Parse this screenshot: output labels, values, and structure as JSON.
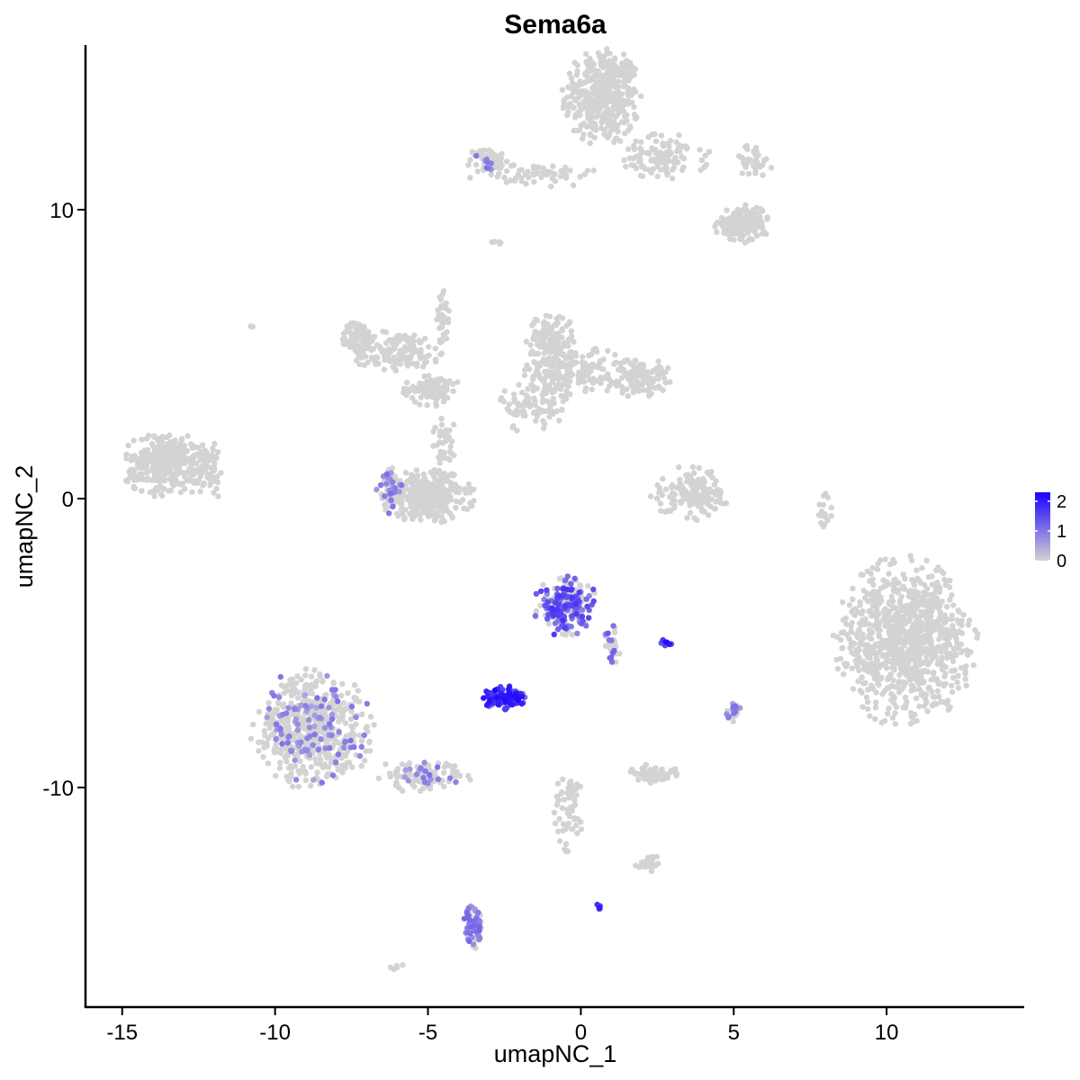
{
  "chart_data": {
    "type": "scatter",
    "title": "Sema6a",
    "xlabel": "umapNC_1",
    "ylabel": "umapNC_2",
    "xlim": [
      -16.2,
      14.5
    ],
    "ylim": [
      -17.6,
      15.7
    ],
    "x_ticks": [
      -15,
      -10,
      -5,
      0,
      5,
      10
    ],
    "x_tick_labels": [
      "-15",
      "-10",
      "-5",
      "0",
      "5",
      "10"
    ],
    "y_ticks": [
      -10,
      0,
      10
    ],
    "y_tick_labels": [
      "-10",
      "0",
      "10"
    ],
    "grid": false,
    "legend": {
      "placement": "right",
      "type": "colorbar",
      "ticks": [
        0,
        1,
        2
      ],
      "tick_labels": [
        "0",
        "1",
        "2"
      ],
      "range": [
        0,
        2.3
      ],
      "low_color": "#d3d3d3",
      "high_color": "#1a00ff"
    },
    "clusters": [
      {
        "name_hint": "top-right-head",
        "cx": 0.7,
        "cy": 13.9,
        "rx": 1.1,
        "ry": 1.5,
        "n": 420,
        "expr": 0,
        "expr_frac": 0
      },
      {
        "name_hint": "top-right-branch-a",
        "cx": 2.7,
        "cy": 11.8,
        "rx": 1.3,
        "ry": 0.7,
        "n": 110,
        "expr": 0,
        "expr_frac": 0
      },
      {
        "name_hint": "top-right-branch-b",
        "cx": 5.3,
        "cy": 9.5,
        "rx": 0.8,
        "ry": 0.6,
        "n": 140,
        "expr": 0,
        "expr_frac": 0
      },
      {
        "name_hint": "top-right-branch-c",
        "cx": 5.6,
        "cy": 11.7,
        "rx": 0.6,
        "ry": 0.5,
        "n": 40,
        "expr": 0,
        "expr_frac": 0
      },
      {
        "name_hint": "top-right-thread",
        "cx": -1.5,
        "cy": 11.2,
        "rx": 1.8,
        "ry": 0.4,
        "n": 60,
        "expr": 0,
        "expr_frac": 0
      },
      {
        "name_hint": "top-left-tip",
        "cx": -3.0,
        "cy": 11.7,
        "rx": 0.6,
        "ry": 0.4,
        "n": 60,
        "expr": 1.2,
        "expr_frac": 0.15
      },
      {
        "name_hint": "mid-left-head",
        "cx": -7.3,
        "cy": 5.5,
        "rx": 0.5,
        "ry": 0.6,
        "n": 90,
        "expr": 0,
        "expr_frac": 0
      },
      {
        "name_hint": "mid-left-arm",
        "cx": -6.0,
        "cy": 5.1,
        "rx": 1.4,
        "ry": 0.6,
        "n": 140,
        "expr": 0,
        "expr_frac": 0
      },
      {
        "name_hint": "mid-left-junction",
        "cx": -4.9,
        "cy": 3.8,
        "rx": 0.8,
        "ry": 0.5,
        "n": 90,
        "expr": 0,
        "expr_frac": 0
      },
      {
        "name_hint": "mid-vertical-thread",
        "cx": -4.5,
        "cy": 6.2,
        "rx": 0.2,
        "ry": 1.2,
        "n": 40,
        "expr": 0,
        "expr_frac": 0
      },
      {
        "name_hint": "mid-center-head",
        "cx": -1.0,
        "cy": 5.5,
        "rx": 0.7,
        "ry": 0.8,
        "n": 130,
        "expr": 0,
        "expr_frac": 0
      },
      {
        "name_hint": "mid-center-body",
        "cx": -0.3,
        "cy": 4.4,
        "rx": 1.5,
        "ry": 0.8,
        "n": 180,
        "expr": 0,
        "expr_frac": 0
      },
      {
        "name_hint": "mid-center-tail",
        "cx": 1.9,
        "cy": 4.2,
        "rx": 0.9,
        "ry": 0.6,
        "n": 120,
        "expr": 0,
        "expr_frac": 0
      },
      {
        "name_hint": "mid-center-lower",
        "cx": -1.5,
        "cy": 3.2,
        "rx": 1.0,
        "ry": 0.8,
        "n": 90,
        "expr": 0,
        "expr_frac": 0
      },
      {
        "name_hint": "far-left",
        "cx": -13.5,
        "cy": 1.2,
        "rx": 1.3,
        "ry": 1.0,
        "n": 320,
        "expr": 0,
        "expr_frac": 0
      },
      {
        "name_hint": "far-left-tail",
        "cx": -12.1,
        "cy": 1.0,
        "rx": 0.4,
        "ry": 0.9,
        "n": 50,
        "expr": 0,
        "expr_frac": 0
      },
      {
        "name_hint": "left-crescent",
        "cx": -5.0,
        "cy": 0.1,
        "rx": 1.3,
        "ry": 0.8,
        "n": 320,
        "expr": 0,
        "expr_frac": 0
      },
      {
        "name_hint": "left-crescent-edge",
        "cx": -6.2,
        "cy": 0.3,
        "rx": 0.4,
        "ry": 0.8,
        "n": 60,
        "expr": 1.0,
        "expr_frac": 0.45
      },
      {
        "name_hint": "left-crescent-stem",
        "cx": -4.5,
        "cy": 1.9,
        "rx": 0.4,
        "ry": 0.9,
        "n": 45,
        "expr": 0,
        "expr_frac": 0
      },
      {
        "name_hint": "right-crescent",
        "cx": 3.6,
        "cy": 0.2,
        "rx": 1.1,
        "ry": 0.8,
        "n": 150,
        "expr": 0,
        "expr_frac": 0
      },
      {
        "name_hint": "far-right",
        "cx": 10.6,
        "cy": -4.9,
        "rx": 2.0,
        "ry": 2.5,
        "n": 900,
        "expr": 0,
        "expr_frac": 0
      },
      {
        "name_hint": "center-upper-expr",
        "cx": -0.5,
        "cy": -3.7,
        "rx": 0.9,
        "ry": 0.9,
        "n": 200,
        "expr": 1.6,
        "expr_frac": 0.6
      },
      {
        "name_hint": "center-upper-tail",
        "cx": 1.0,
        "cy": -5.0,
        "rx": 0.3,
        "ry": 0.6,
        "n": 30,
        "expr": 1.3,
        "expr_frac": 0.5
      },
      {
        "name_hint": "center-lower-expr",
        "cx": -2.5,
        "cy": -6.9,
        "rx": 0.6,
        "ry": 0.35,
        "n": 120,
        "expr": 2.0,
        "expr_frac": 0.9
      },
      {
        "name_hint": "bottom-left-body",
        "cx": -8.8,
        "cy": -8.0,
        "rx": 1.7,
        "ry": 1.8,
        "n": 600,
        "expr": 1.0,
        "expr_frac": 0.15
      },
      {
        "name_hint": "bottom-left-arm",
        "cx": -5.2,
        "cy": -9.6,
        "rx": 1.4,
        "ry": 0.5,
        "n": 100,
        "expr": 1.0,
        "expr_frac": 0.2
      },
      {
        "name_hint": "bottom-stem",
        "cx": -3.5,
        "cy": -14.8,
        "rx": 0.3,
        "ry": 0.7,
        "n": 70,
        "expr": 1.1,
        "expr_frac": 0.6
      },
      {
        "name_hint": "bottom-center-thread",
        "cx": -0.4,
        "cy": -10.8,
        "rx": 0.4,
        "ry": 1.3,
        "n": 60,
        "expr": 0,
        "expr_frac": 0
      },
      {
        "name_hint": "bottom-right-small",
        "cx": 2.4,
        "cy": -9.5,
        "rx": 0.8,
        "ry": 0.3,
        "n": 60,
        "expr": 0,
        "expr_frac": 0
      },
      {
        "name_hint": "bottom-right-tip",
        "cx": 2.2,
        "cy": -12.6,
        "rx": 0.4,
        "ry": 0.3,
        "n": 25,
        "expr": 0,
        "expr_frac": 0
      },
      {
        "name_hint": "right-small",
        "cx": 5.0,
        "cy": -7.4,
        "rx": 0.2,
        "ry": 0.4,
        "n": 20,
        "expr": 1.0,
        "expr_frac": 0.4
      },
      {
        "name_hint": "right-vertical-thread",
        "cx": 8.0,
        "cy": -0.5,
        "rx": 0.2,
        "ry": 0.9,
        "n": 20,
        "expr": 0,
        "expr_frac": 0
      },
      {
        "name_hint": "small-expr-dot-a",
        "cx": 0.6,
        "cy": -14.1,
        "rx": 0.1,
        "ry": 0.1,
        "n": 6,
        "expr": 2.2,
        "expr_frac": 1.0
      },
      {
        "name_hint": "small-expr-dot-b",
        "cx": 2.8,
        "cy": -5.0,
        "rx": 0.2,
        "ry": 0.1,
        "n": 8,
        "expr": 2.0,
        "expr_frac": 1.0
      },
      {
        "name_hint": "stray-left",
        "cx": -10.8,
        "cy": 6.0,
        "rx": 0.1,
        "ry": 0.1,
        "n": 3,
        "expr": 0,
        "expr_frac": 0
      },
      {
        "name_hint": "stray-bottom",
        "cx": -6.0,
        "cy": -16.2,
        "rx": 0.2,
        "ry": 0.1,
        "n": 5,
        "expr": 0,
        "expr_frac": 0
      },
      {
        "name_hint": "stray-top",
        "cx": -2.8,
        "cy": 8.9,
        "rx": 0.3,
        "ry": 0.1,
        "n": 6,
        "expr": 0,
        "expr_frac": 0
      }
    ]
  }
}
